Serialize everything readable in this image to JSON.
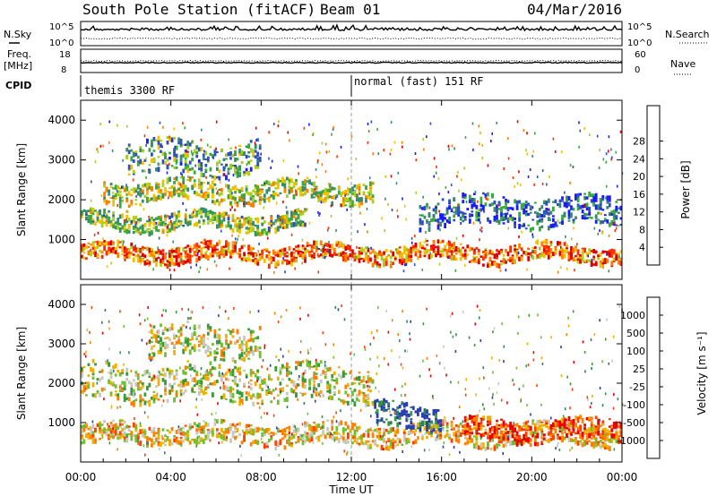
{
  "header": {
    "station": "South Pole Station (fitACF)",
    "beam": "Beam 01",
    "date": "04/Mar/2016"
  },
  "top_panels": {
    "nsky": {
      "label": "N.Sky",
      "tick_top": "10^5",
      "tick_bottom": "10^0",
      "right_label": "N.Search",
      "right_tick_top": "10^5",
      "right_tick_bottom": "10^0"
    },
    "freq": {
      "label_line1": "Freq.",
      "label_line2": "[MHz]",
      "tick_top": "18",
      "tick_bottom": "8",
      "right_label": "Nave",
      "right_tick_top": "60",
      "right_tick_bottom": "0"
    },
    "cpid": {
      "label": "CPID",
      "segments": [
        {
          "start_hour": 0,
          "text": "themis 3300 RF"
        },
        {
          "start_hour": 12,
          "text": "normal (fast) 151 RF"
        }
      ]
    }
  },
  "chart_data": [
    {
      "type": "heatmap",
      "name": "power",
      "ylabel": "Slant Range [km]",
      "xlabel": "",
      "ylim": [
        0,
        4500
      ],
      "yticks": [
        "1000",
        "2000",
        "3000",
        "4000"
      ],
      "colorbar": {
        "label": "Power [dB]",
        "ticks": [
          "4",
          "8",
          "12",
          "16",
          "20",
          "24",
          "28"
        ],
        "colors": [
          "#1a1aff",
          "#3050c0",
          "#3a8a70",
          "#3aaa3a",
          "#a8d020",
          "#f5c000",
          "#ff8000",
          "#ff3000",
          "#dd0000"
        ]
      },
      "bands": [
        {
          "start_hour": 0,
          "end_hour": 24,
          "low_km": 500,
          "high_km": 900,
          "level": 0.75
        },
        {
          "start_hour": 0,
          "end_hour": 10,
          "low_km": 1300,
          "high_km": 1700,
          "level": 0.45
        },
        {
          "start_hour": 1,
          "end_hour": 13,
          "low_km": 2000,
          "high_km": 2500,
          "level": 0.5
        },
        {
          "start_hour": 2,
          "end_hour": 8,
          "low_km": 2700,
          "high_km": 3500,
          "level": 0.35
        },
        {
          "start_hour": 15,
          "end_hour": 24,
          "low_km": 1400,
          "high_km": 2100,
          "level": 0.2
        }
      ]
    },
    {
      "type": "heatmap",
      "name": "velocity",
      "ylabel": "Slant Range [km]",
      "xlabel": "Time UT",
      "ylim": [
        0,
        4500
      ],
      "yticks": [
        "1000",
        "2000",
        "3000",
        "4000"
      ],
      "xticks": [
        "00:00",
        "04:00",
        "08:00",
        "12:00",
        "16:00",
        "20:00",
        "00:00"
      ],
      "colorbar": {
        "label": "Velocity [m s⁻¹]",
        "ticks": [
          "1000",
          "500",
          "100",
          "25",
          "-25",
          "-100",
          "-500",
          "-1000"
        ],
        "colors": [
          "#2a40b0",
          "#2f8060",
          "#3a9a3a",
          "#70c030",
          "#c8c8c0",
          "#f0b000",
          "#ff8000",
          "#ff4000",
          "#ee0000"
        ]
      },
      "bands": [
        {
          "start_hour": 0,
          "end_hour": 24,
          "low_km": 500,
          "high_km": 1000,
          "level": 0.6
        },
        {
          "start_hour": 0,
          "end_hour": 13,
          "low_km": 1600,
          "high_km": 2500,
          "level": 0.5
        },
        {
          "start_hour": 3,
          "end_hour": 8,
          "low_km": 2700,
          "high_km": 3500,
          "level": 0.5
        },
        {
          "start_hour": 13,
          "end_hour": 16,
          "low_km": 900,
          "high_km": 1500,
          "level": 0.05
        },
        {
          "start_hour": 17,
          "end_hour": 24,
          "low_km": 600,
          "high_km": 1100,
          "level": 0.85
        }
      ]
    }
  ]
}
